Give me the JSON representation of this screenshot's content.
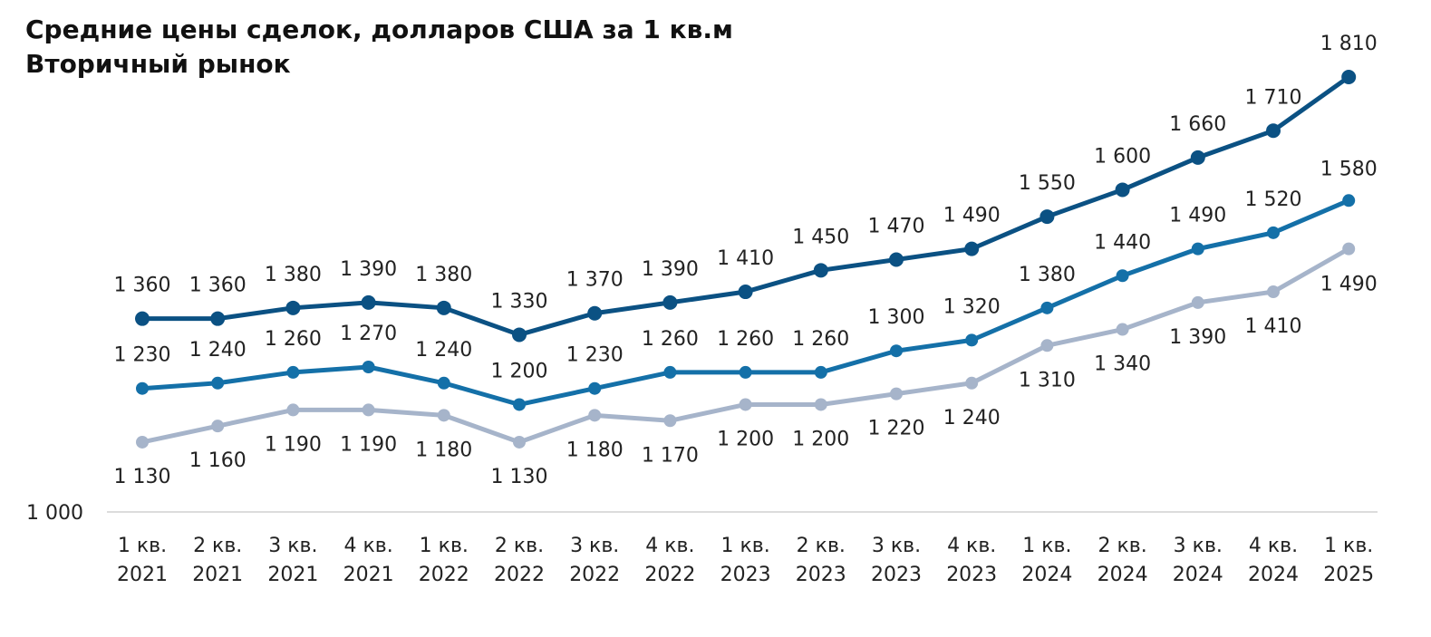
{
  "title": "Средние цены сделок, долларов США за 1 кв.м",
  "subtitle": "Вторичный рынок",
  "chart_data": {
    "type": "line",
    "title": "Средние цены сделок, долларов США за 1 кв.м",
    "subtitle": "Вторичный рынок",
    "categories": [
      [
        "1 кв.",
        "2021"
      ],
      [
        "2 кв.",
        "2021"
      ],
      [
        "3 кв.",
        "2021"
      ],
      [
        "4 кв.",
        "2021"
      ],
      [
        "1 кв.",
        "2022"
      ],
      [
        "2 кв.",
        "2022"
      ],
      [
        "3 кв.",
        "2022"
      ],
      [
        "4 кв.",
        "2022"
      ],
      [
        "1 кв.",
        "2023"
      ],
      [
        "2 кв.",
        "2023"
      ],
      [
        "3 кв.",
        "2023"
      ],
      [
        "4 кв.",
        "2023"
      ],
      [
        "1 кв.",
        "2024"
      ],
      [
        "2 кв.",
        "2024"
      ],
      [
        "3 кв.",
        "2024"
      ],
      [
        "4 кв.",
        "2024"
      ],
      [
        "1 кв.",
        "2025"
      ]
    ],
    "y_tick_label": "1 000",
    "ylim": [
      1000,
      1810
    ],
    "grid": false,
    "legend": "none",
    "series": [
      {
        "color": "#0b5183",
        "values": [
          1360,
          1360,
          1380,
          1390,
          1380,
          1330,
          1370,
          1390,
          1410,
          1450,
          1470,
          1490,
          1550,
          1600,
          1660,
          1710,
          1810
        ],
        "labels": [
          "1 360",
          "1 360",
          "1 380",
          "1 390",
          "1 380",
          "1 330",
          "1 370",
          "1 390",
          "1 410",
          "1 450",
          "1 470",
          "1 490",
          "1 550",
          "1 600",
          "1 660",
          "1 710",
          "1 810"
        ]
      },
      {
        "color": "#1470a8",
        "values": [
          1230,
          1240,
          1260,
          1270,
          1240,
          1200,
          1230,
          1260,
          1260,
          1260,
          1300,
          1320,
          1380,
          1440,
          1490,
          1520,
          1580
        ],
        "labels": [
          "1 230",
          "1 240",
          "1 260",
          "1 270",
          "1 240",
          "1 200",
          "1 230",
          "1 260",
          "1 260",
          "1 260",
          "1 300",
          "1 320",
          "1 380",
          "1 440",
          "1 490",
          "1 520",
          "1 580"
        ]
      },
      {
        "color": "#a6b4ca",
        "values": [
          1130,
          1160,
          1190,
          1190,
          1180,
          1130,
          1180,
          1170,
          1200,
          1200,
          1220,
          1240,
          1310,
          1340,
          1390,
          1410,
          1490
        ],
        "labels": [
          "1 130",
          "1 160",
          "1 190",
          "1 190",
          "1 180",
          "1 130",
          "1 180",
          "1 170",
          "1 200",
          "1 200",
          "1 220",
          "1 240",
          "1 310",
          "1 340",
          "1 390",
          "1 410",
          "1 490"
        ]
      }
    ]
  }
}
